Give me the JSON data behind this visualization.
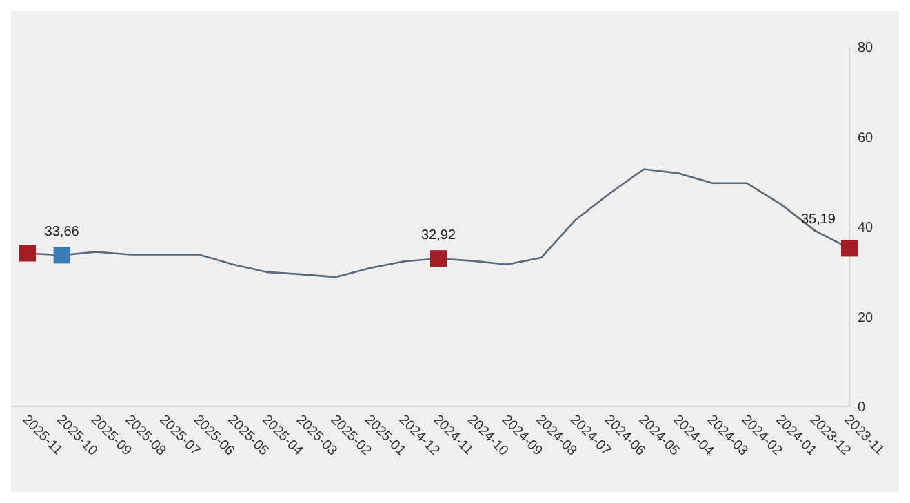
{
  "chart_data": {
    "type": "line",
    "categories": [
      "2025-11",
      "2025-10",
      "2025-09",
      "2025-08",
      "2025-07",
      "2025-06",
      "2025-05",
      "2025-04",
      "2025-03",
      "2025-02",
      "2025-01",
      "2024-12",
      "2024-11",
      "2024-10",
      "2024-09",
      "2024-08",
      "2024-07",
      "2024-06",
      "2024-05",
      "2024-04",
      "2024-03",
      "2024-02",
      "2024-01",
      "2023-12",
      "2023-11"
    ],
    "series": [
      {
        "color": "#5a6a7a",
        "marker": "none",
        "values": [
          34.1,
          33.66,
          34.4,
          33.8,
          33.8,
          33.8,
          31.6,
          29.9,
          29.4,
          28.8,
          30.8,
          32.3,
          32.92,
          32.4,
          31.6,
          33.1,
          41.5,
          47.4,
          52.8,
          51.9,
          49.7,
          49.7,
          45.0,
          39.1,
          35.19
        ]
      },
      {
        "type": "scatter",
        "marker": "square",
        "values": [
          34.1,
          33.66,
          null,
          null,
          null,
          null,
          null,
          null,
          null,
          null,
          null,
          null,
          32.92,
          null,
          null,
          null,
          null,
          null,
          null,
          null,
          null,
          null,
          null,
          null,
          35.19
        ],
        "colors": [
          "#a31f25",
          "#3a7ab5",
          null,
          null,
          null,
          null,
          null,
          null,
          null,
          null,
          null,
          null,
          "#a31f25",
          null,
          null,
          null,
          null,
          null,
          null,
          null,
          null,
          null,
          null,
          null,
          "#a31f25"
        ],
        "value_labels": [
          null,
          "33,66",
          null,
          null,
          null,
          null,
          null,
          null,
          null,
          null,
          null,
          null,
          "32,92",
          null,
          null,
          null,
          null,
          null,
          null,
          null,
          null,
          null,
          null,
          null,
          "35,19"
        ]
      }
    ],
    "ylim": [
      0,
      80
    ],
    "yticks": [
      0,
      20,
      40,
      60,
      80
    ],
    "grid": false,
    "line_style": "solid"
  }
}
